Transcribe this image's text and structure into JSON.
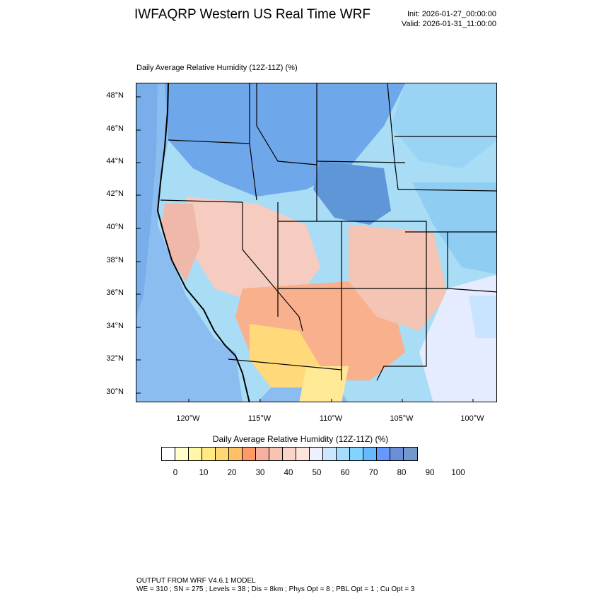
{
  "header": {
    "title": "IWFAQRP Western US Real Time WRF",
    "init": "Init: 2026-01-27_00:00:00",
    "valid": "Valid: 2026-01-31_11:00:00"
  },
  "map": {
    "title": "Daily Average Relative Humidity (12Z-11Z)   (%)",
    "lat_labels": [
      "48°N",
      "46°N",
      "44°N",
      "42°N",
      "40°N",
      "38°N",
      "36°N",
      "34°N",
      "32°N",
      "30°N"
    ],
    "lon_labels": [
      "120°W",
      "115°W",
      "110°W",
      "105°W",
      "100°W"
    ]
  },
  "colorbar": {
    "title": "Daily Average Relative Humidity (12Z-11Z)  (%)",
    "colors": [
      "#ffffff",
      "#ffffcc",
      "#fff7a6",
      "#ffeb80",
      "#ffd873",
      "#ffbf66",
      "#ff9966",
      "#f5b09e",
      "#f7c3b3",
      "#fad4c7",
      "#fde5dc",
      "#eef0ff",
      "#cce6ff",
      "#a6ddff",
      "#80d4ff",
      "#66b8ff",
      "#6699ff",
      "#6b8ed9",
      "#7399cc"
    ],
    "labels": [
      "0",
      "10",
      "20",
      "30",
      "40",
      "50",
      "60",
      "70",
      "80",
      "90",
      "100"
    ]
  },
  "footer": {
    "line1": "OUTPUT FROM WRF V4.6.1 MODEL",
    "line2": "WE = 310 ; SN = 275 ; Levels = 38 ; Dis = 8km ; Phys Opt = 8 ; PBL Opt = 1 ; Cu Opt = 3"
  }
}
